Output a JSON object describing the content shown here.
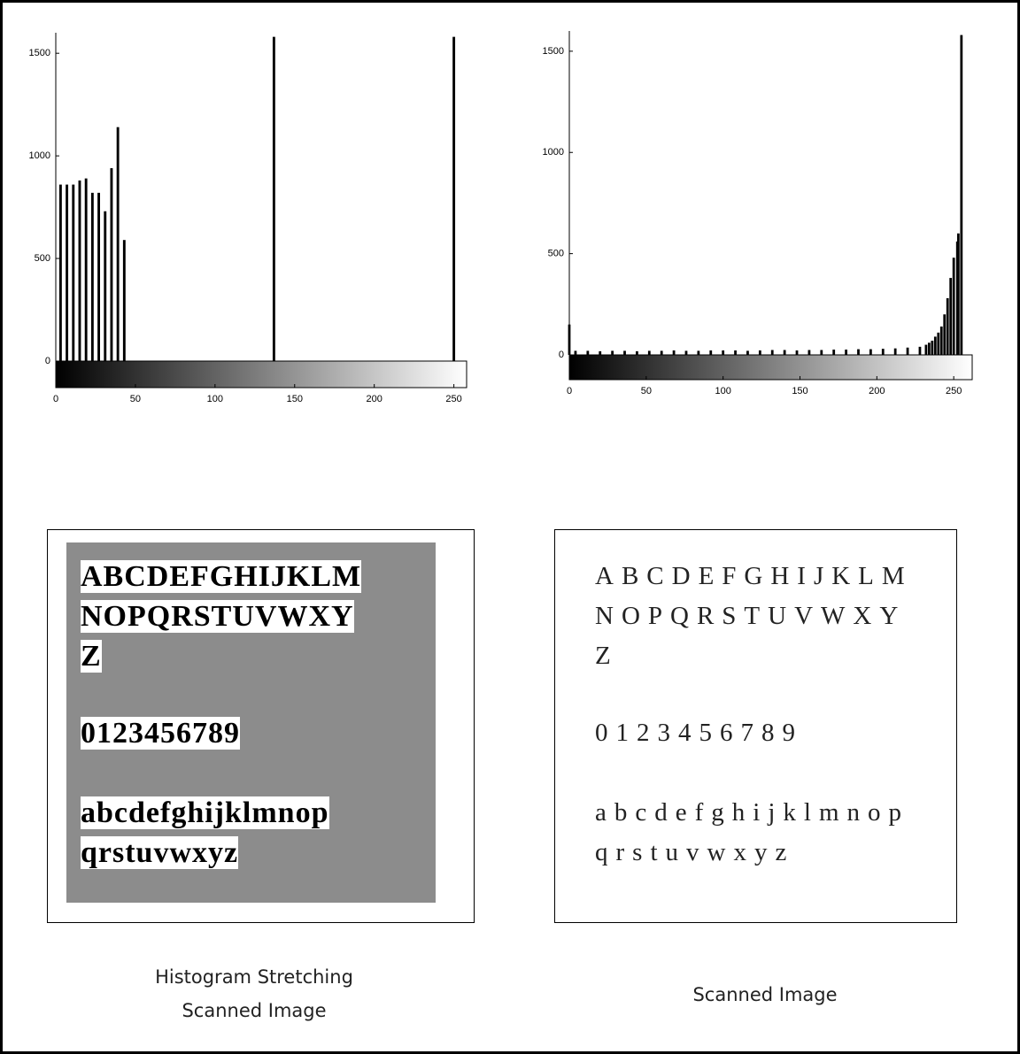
{
  "chart_data": [
    {
      "type": "bar",
      "x": [
        3,
        7,
        11,
        15,
        19,
        23,
        27,
        31,
        35,
        39,
        43,
        137,
        250
      ],
      "values": [
        860,
        860,
        860,
        880,
        890,
        820,
        820,
        730,
        940,
        1140,
        590,
        1580,
        1580
      ],
      "color": "#000000",
      "xlim": [
        0,
        258
      ],
      "ylim": [
        0,
        1600
      ],
      "xticks": [
        0,
        50,
        100,
        150,
        200,
        250
      ],
      "yticks": [
        0,
        500,
        1000,
        1500
      ]
    },
    {
      "type": "bar",
      "x": [
        0,
        4,
        12,
        20,
        28,
        36,
        44,
        52,
        60,
        68,
        76,
        84,
        92,
        100,
        108,
        116,
        124,
        132,
        140,
        148,
        156,
        164,
        172,
        180,
        188,
        196,
        204,
        212,
        220,
        228,
        232,
        234,
        236,
        238,
        240,
        242,
        244,
        246,
        248,
        250,
        252,
        253,
        255
      ],
      "values": [
        150,
        20,
        20,
        18,
        20,
        20,
        18,
        20,
        20,
        22,
        20,
        20,
        22,
        22,
        22,
        20,
        22,
        24,
        24,
        22,
        24,
        24,
        26,
        26,
        28,
        28,
        30,
        32,
        36,
        40,
        50,
        60,
        70,
        90,
        110,
        140,
        200,
        280,
        380,
        480,
        560,
        600,
        1580
      ],
      "color": "#000000",
      "xlim": [
        0,
        262
      ],
      "ylim": [
        0,
        1600
      ],
      "xticks": [
        0,
        50,
        100,
        150,
        200,
        250
      ],
      "yticks": [
        0,
        500,
        1000,
        1500
      ]
    }
  ],
  "images": [
    {
      "lines": [
        "ABCDEFGHIJKLM",
        "NOPQRSTUVWXY",
        "Z",
        "0123456789",
        "abcdefghijklmnop",
        "qrstuvwxyz"
      ],
      "caption": [
        "Histogram Stretching",
        "Scanned Image"
      ]
    },
    {
      "lines": [
        "ABCDEFGHIJKLM",
        "NOPQRSTUVWXY",
        "Z",
        "0123456789",
        "abcdefghijklmnop",
        "qrstuvwxyz"
      ],
      "caption": [
        "Scanned Image"
      ]
    }
  ]
}
